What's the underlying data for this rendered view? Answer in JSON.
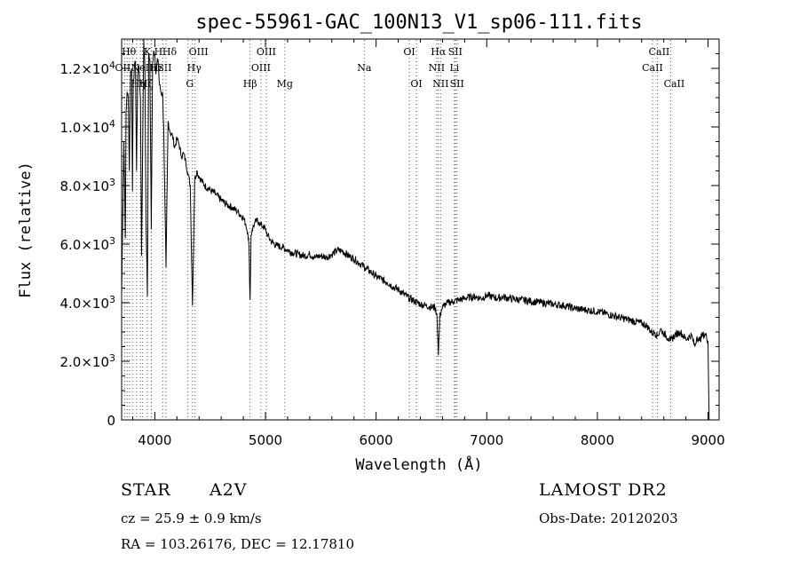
{
  "chart_data": {
    "type": "line",
    "title": "spec-55961-GAC_100N13_V1_sp06-111.fits",
    "xlabel": "Wavelength (Å)",
    "ylabel": "Flux (relative)",
    "xlim": [
      3700,
      9100
    ],
    "ylim": [
      0,
      13000
    ],
    "xticks": [
      4000,
      5000,
      6000,
      7000,
      8000,
      9000
    ],
    "yticks": [
      {
        "value": 0,
        "mant": "0",
        "exp": ""
      },
      {
        "value": 2000,
        "mant": "2.0×10",
        "exp": "3"
      },
      {
        "value": 4000,
        "mant": "4.0×10",
        "exp": "3"
      },
      {
        "value": 6000,
        "mant": "6.0×10",
        "exp": "3"
      },
      {
        "value": 8000,
        "mant": "8.0×10",
        "exp": "3"
      },
      {
        "value": 10000,
        "mant": "1.0×10",
        "exp": "4"
      },
      {
        "value": 12000,
        "mant": "1.2×10",
        "exp": "4"
      }
    ],
    "series": [
      {
        "x": [
          3700,
          3720,
          3734,
          3740,
          3750,
          3760,
          3770,
          3780,
          3790,
          3798,
          3805,
          3815,
          3825,
          3835,
          3845,
          3855,
          3870,
          3880,
          3889,
          3900,
          3910,
          3920,
          3933,
          3945,
          3955,
          3968,
          3980,
          3990,
          4000,
          4010,
          4020,
          4030,
          4040,
          4050,
          4060,
          4070,
          4080,
          4101,
          4120,
          4140,
          4160,
          4180,
          4200,
          4220,
          4240,
          4260,
          4280,
          4300,
          4320,
          4340,
          4360,
          4380,
          4400,
          4450,
          4500,
          4550,
          4600,
          4650,
          4700,
          4750,
          4800,
          4820,
          4840,
          4850,
          4861,
          4870,
          4880,
          4900,
          4920,
          4940,
          4960,
          4980,
          5000,
          5020,
          5050,
          5100,
          5150,
          5200,
          5250,
          5300,
          5350,
          5400,
          5450,
          5500,
          5550,
          5600,
          5650,
          5700,
          5750,
          5800,
          5850,
          5900,
          5950,
          6000,
          6050,
          6100,
          6150,
          6200,
          6250,
          6300,
          6350,
          6400,
          6450,
          6500,
          6530,
          6550,
          6563,
          6575,
          6590,
          6610,
          6630,
          6650,
          6700,
          6750,
          6800,
          6850,
          6900,
          6950,
          7000,
          7050,
          7100,
          7150,
          7200,
          7300,
          7400,
          7500,
          7600,
          7700,
          7800,
          7900,
          8000,
          8100,
          8200,
          8300,
          8400,
          8450,
          8498,
          8520,
          8542,
          8570,
          8600,
          8640,
          8662,
          8700,
          8750,
          8800,
          8850,
          8880,
          8900,
          8920,
          8950,
          8980,
          9000,
          9004,
          9010
        ],
        "y": [
          4300,
          9500,
          6200,
          10500,
          11200,
          11000,
          8500,
          11800,
          12000,
          7800,
          11500,
          12000,
          12200,
          8500,
          11800,
          12100,
          11000,
          5600,
          9000,
          13000,
          12000,
          7000,
          4200,
          12500,
          12300,
          6500,
          12200,
          12600,
          12500,
          11800,
          12200,
          12300,
          11500,
          11300,
          11100,
          11200,
          10000,
          5200,
          10200,
          9800,
          9700,
          9300,
          9600,
          9400,
          9000,
          9100,
          8800,
          8400,
          8000,
          3900,
          8200,
          8500,
          8300,
          8000,
          7850,
          7700,
          7500,
          7350,
          7250,
          7100,
          6900,
          6700,
          6400,
          6000,
          4100,
          6300,
          6500,
          6700,
          6800,
          6750,
          6650,
          6600,
          6500,
          6300,
          6100,
          5950,
          5900,
          5800,
          5700,
          5650,
          5600,
          5650,
          5550,
          5600,
          5550,
          5650,
          5800,
          5750,
          5600,
          5500,
          5350,
          5200,
          5050,
          4900,
          4800,
          4700,
          4550,
          4450,
          4300,
          4150,
          4050,
          3950,
          3900,
          3850,
          3850,
          3600,
          2200,
          3500,
          3750,
          3900,
          3950,
          4000,
          4050,
          4100,
          4150,
          4200,
          4200,
          4150,
          4250,
          4200,
          4150,
          4200,
          4150,
          4100,
          4050,
          4000,
          3950,
          3900,
          3800,
          3750,
          3700,
          3600,
          3500,
          3400,
          3300,
          3200,
          2950,
          3000,
          2850,
          3100,
          2950,
          2800,
          2700,
          2900,
          3000,
          2750,
          2900,
          2500,
          2850,
          2700,
          2900,
          2900,
          2700,
          1500,
          0
        ]
      }
    ],
    "lines": [
      {
        "x": 3727,
        "label": "OII",
        "row": 1,
        "dx": -2
      },
      {
        "x": 3750,
        "label": "",
        "row": 0,
        "dx": 0
      },
      {
        "x": 3771,
        "label": "",
        "row": 0,
        "dx": 0
      },
      {
        "x": 3798,
        "label": "Hθ",
        "row": 0,
        "dx": -4
      },
      {
        "x": 3835,
        "label": "Hη",
        "row": 2,
        "dx": 2
      },
      {
        "x": 3869,
        "label": "NeIII",
        "row": 1,
        "dx": 4
      },
      {
        "x": 3889,
        "label": "Hζ",
        "row": 2,
        "dx": 4
      },
      {
        "x": 3933,
        "label": "K",
        "row": 0,
        "dx": 0
      },
      {
        "x": 3968,
        "label": "H",
        "row": 0,
        "dx": 8
      },
      {
        "x": 3970,
        "label": "Hε",
        "row": 1,
        "dx": 6
      },
      {
        "x": 4072,
        "label": "SII",
        "row": 1,
        "dx": 2
      },
      {
        "x": 4101,
        "label": "Hδ",
        "row": 0,
        "dx": 4
      },
      {
        "x": 4300,
        "label": "G",
        "row": 2,
        "dx": 2
      },
      {
        "x": 4340,
        "label": "Hγ",
        "row": 1,
        "dx": 2
      },
      {
        "x": 4363,
        "label": "OIII",
        "row": 0,
        "dx": 4
      },
      {
        "x": 4861,
        "label": "Hβ",
        "row": 2,
        "dx": 0
      },
      {
        "x": 4959,
        "label": "OIII",
        "row": 1,
        "dx": 0
      },
      {
        "x": 5007,
        "label": "OIII",
        "row": 0,
        "dx": 0
      },
      {
        "x": 5175,
        "label": "Mg",
        "row": 2,
        "dx": 0
      },
      {
        "x": 5893,
        "label": "Na",
        "row": 1,
        "dx": 0
      },
      {
        "x": 6300,
        "label": "OI",
        "row": 0,
        "dx": 0
      },
      {
        "x": 6364,
        "label": "OI",
        "row": 2,
        "dx": 0
      },
      {
        "x": 6548,
        "label": "NII",
        "row": 1,
        "dx": 0
      },
      {
        "x": 6563,
        "label": "Hα",
        "row": 0,
        "dx": 0
      },
      {
        "x": 6583,
        "label": "NII",
        "row": 2,
        "dx": 0
      },
      {
        "x": 6708,
        "label": "Li",
        "row": 1,
        "dx": 0
      },
      {
        "x": 6716,
        "label": "SII",
        "row": 0,
        "dx": 0
      },
      {
        "x": 6731,
        "label": "SII",
        "row": 2,
        "dx": 0
      },
      {
        "x": 8498,
        "label": "CaII",
        "row": 1,
        "dx": 0
      },
      {
        "x": 8542,
        "label": "CaII",
        "row": 0,
        "dx": 2
      },
      {
        "x": 8662,
        "label": "CaII",
        "row": 2,
        "dx": 4
      }
    ]
  },
  "info": {
    "class_label": "STAR",
    "subclass": "A2V",
    "survey": "LAMOST DR2",
    "cz": "cz = 25.9 ± 0.9 km/s",
    "obs_date": "Obs-Date: 20120203",
    "coords": "RA = 103.26176, DEC =  12.17810"
  }
}
